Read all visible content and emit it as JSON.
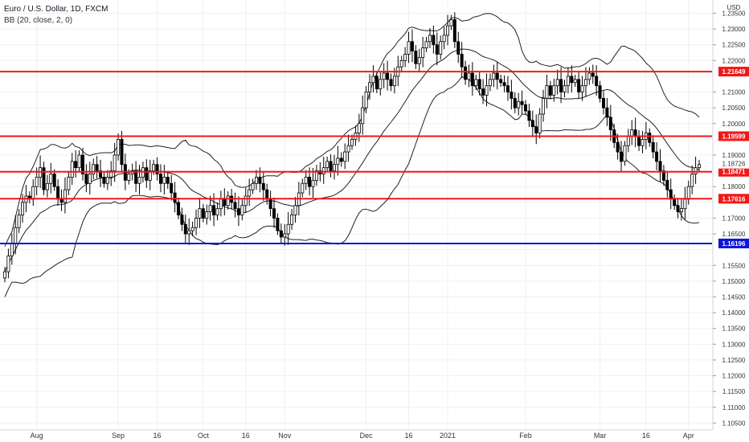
{
  "chart_data": {
    "type": "candlestick",
    "title": "Euro / U.S. Dollar, 1D, FXCM",
    "indicator": "BB (20, close, 2, 0)",
    "currency_label": "USD",
    "ylim": [
      1.1028,
      1.2392
    ],
    "y_ticks": [
      "1.10500",
      "1.11000",
      "1.11500",
      "1.12000",
      "1.12500",
      "1.13000",
      "1.13500",
      "1.14000",
      "1.14500",
      "1.15000",
      "1.15500",
      "1.16000",
      "1.16500",
      "1.17000",
      "1.17500",
      "1.18000",
      "1.18500",
      "1.19000",
      "1.19500",
      "1.20000",
      "1.20500",
      "1.21000",
      "1.21500",
      "1.22000",
      "1.22500",
      "1.23000",
      "1.23500"
    ],
    "x_ticks": [
      {
        "label": "Aug",
        "bar": 9
      },
      {
        "label": "Sep",
        "bar": 32
      },
      {
        "label": "16",
        "bar": 43
      },
      {
        "label": "Oct",
        "bar": 56
      },
      {
        "label": "16",
        "bar": 68
      },
      {
        "label": "Nov",
        "bar": 79
      },
      {
        "label": "Dec",
        "bar": 102
      },
      {
        "label": "16",
        "bar": 114
      },
      {
        "label": "2021",
        "bar": 125
      },
      {
        "label": "Feb",
        "bar": 147
      },
      {
        "label": "Mar",
        "bar": 168
      },
      {
        "label": "16",
        "bar": 181
      },
      {
        "label": "Apr",
        "bar": 193
      }
    ],
    "grid": true,
    "horizontal_lines": [
      {
        "value": 1.21649,
        "label": "1.21649",
        "color": "#f21818"
      },
      {
        "value": 1.19599,
        "label": "1.19599",
        "color": "#f21818"
      },
      {
        "value": 1.18471,
        "label": "1.18471",
        "color": "#f21818"
      },
      {
        "value": 1.17616,
        "label": "1.17616",
        "color": "#f21818"
      },
      {
        "value": 1.16196,
        "label": "1.16196",
        "color": "#0b16d6"
      }
    ],
    "last_price": {
      "value": 1.18726,
      "label": "1.18726"
    },
    "closes": [
      1.153,
      1.158,
      1.162,
      1.167,
      1.171,
      1.175,
      1.177,
      1.176,
      1.18,
      1.183,
      1.186,
      1.179,
      1.181,
      1.184,
      1.18,
      1.176,
      1.175,
      1.179,
      1.183,
      1.188,
      1.186,
      1.19,
      1.184,
      1.181,
      1.184,
      1.187,
      1.185,
      1.183,
      1.181,
      1.183,
      1.185,
      1.19,
      1.195,
      1.187,
      1.182,
      1.184,
      1.185,
      1.181,
      1.183,
      1.186,
      1.182,
      1.185,
      1.187,
      1.184,
      1.181,
      1.183,
      1.181,
      1.178,
      1.175,
      1.171,
      1.168,
      1.165,
      1.166,
      1.167,
      1.17,
      1.173,
      1.17,
      1.172,
      1.174,
      1.171,
      1.173,
      1.176,
      1.174,
      1.177,
      1.175,
      1.173,
      1.171,
      1.174,
      1.177,
      1.179,
      1.181,
      1.183,
      1.181,
      1.179,
      1.176,
      1.173,
      1.17,
      1.166,
      1.164,
      1.165,
      1.168,
      1.171,
      1.174,
      1.178,
      1.181,
      1.183,
      1.18,
      1.182,
      1.185,
      1.184,
      1.186,
      1.188,
      1.185,
      1.187,
      1.189,
      1.188,
      1.191,
      1.193,
      1.195,
      1.197,
      1.2,
      1.205,
      1.21,
      1.213,
      1.215,
      1.211,
      1.214,
      1.216,
      1.214,
      1.212,
      1.215,
      1.218,
      1.22,
      1.222,
      1.226,
      1.223,
      1.219,
      1.221,
      1.224,
      1.226,
      1.228,
      1.225,
      1.222,
      1.226,
      1.228,
      1.231,
      1.233,
      1.226,
      1.222,
      1.218,
      1.214,
      1.216,
      1.212,
      1.214,
      1.211,
      1.209,
      1.212,
      1.214,
      1.216,
      1.214,
      1.213,
      1.212,
      1.21,
      1.208,
      1.205,
      1.207,
      1.206,
      1.204,
      1.201,
      1.199,
      1.197,
      1.203,
      1.208,
      1.212,
      1.209,
      1.212,
      1.214,
      1.21,
      1.212,
      1.215,
      1.213,
      1.214,
      1.21,
      1.212,
      1.214,
      1.216,
      1.215,
      1.212,
      1.208,
      1.205,
      1.202,
      1.198,
      1.194,
      1.191,
      1.188,
      1.193,
      1.196,
      1.198,
      1.196,
      1.193,
      1.195,
      1.197,
      1.194,
      1.191,
      1.188,
      1.185,
      1.182,
      1.179,
      1.176,
      1.174,
      1.172,
      1.173,
      1.176,
      1.18,
      1.184,
      1.186,
      1.187
    ]
  }
}
